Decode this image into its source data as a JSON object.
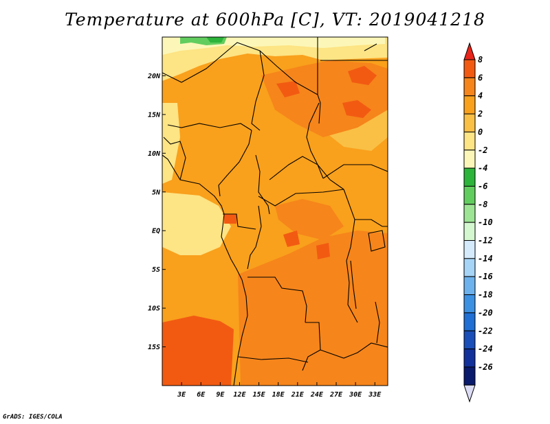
{
  "title": "Temperature at 600hPa [C], VT: 2019041218",
  "credit": "GrADS: IGES/COLA",
  "map": {
    "region": "Central Africa",
    "lon_range": [
      0,
      35
    ],
    "lat_range": [
      -20,
      25
    ],
    "lat_ticks": [
      "20N",
      "15N",
      "10N",
      "5N",
      "EQ",
      "5S",
      "10S",
      "15S"
    ],
    "lon_ticks": [
      "3E",
      "6E",
      "9E",
      "12E",
      "15E",
      "18E",
      "21E",
      "24E",
      "27E",
      "30E",
      "33E"
    ]
  },
  "colorbar": {
    "levels": [
      "8",
      "6",
      "4",
      "2",
      "0",
      "-2",
      "-4",
      "-6",
      "-8",
      "-10",
      "-12",
      "-14",
      "-16",
      "-18",
      "-20",
      "-22",
      "-24",
      "-26"
    ],
    "colors": [
      "#e8251b",
      "#f25a12",
      "#f6851b",
      "#f9a01c",
      "#f9c045",
      "#fde484",
      "#fcf7b8",
      "#2db43a",
      "#62cd5f",
      "#9de495",
      "#d4f7cf",
      "#d5ebfc",
      "#a6d4f6",
      "#6db2ec",
      "#3d91e3",
      "#1f6fd4",
      "#1a4eb8",
      "#12319a",
      "#0a1a6c",
      "#dcdcf5"
    ]
  },
  "field_colors": {
    "hot": "#f25a12",
    "warm4": "#f6851b",
    "warm2": "#f9a01c",
    "warm0": "#f9c045",
    "cool": "#fde484",
    "cooler": "#fcf7b8",
    "green": "#2db43a",
    "green_light": "#62cd5f"
  }
}
